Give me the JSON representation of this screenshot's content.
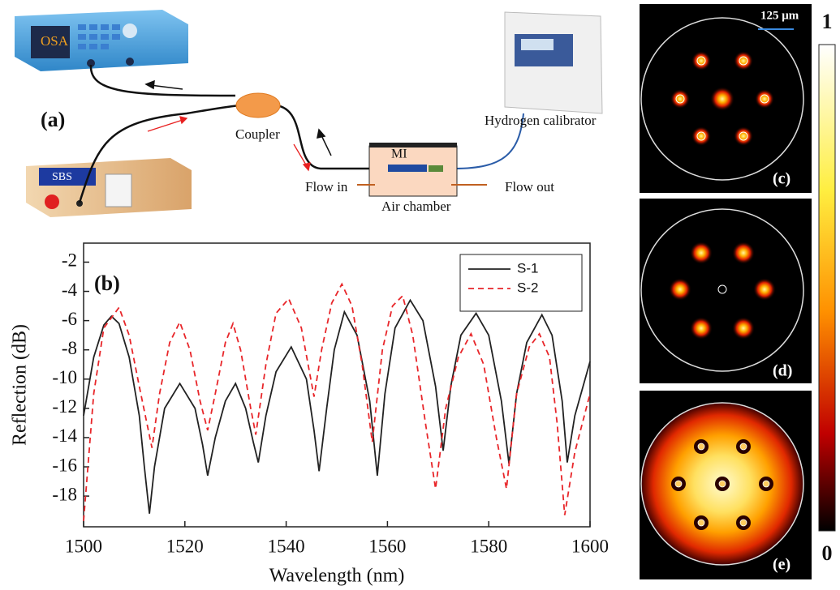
{
  "diagram": {
    "panel_label": "(a)",
    "osa": "OSA",
    "sbs": "SBS",
    "coupler": "Coupler",
    "calibrator": "Hydrogen calibrator",
    "mi": "MI",
    "flow_in": "Flow in",
    "flow_out": "Flow out",
    "chamber": "Air chamber"
  },
  "chart_data": {
    "type": "line",
    "panel_label": "(b)",
    "x_label": "Wavelength (nm)",
    "y_label": "Reflection (dB)",
    "xlim": [
      1500,
      1600
    ],
    "xticks": [
      1500,
      1520,
      1540,
      1560,
      1580,
      1600
    ],
    "ylim": [
      -20.1,
      -0.7
    ],
    "yticks": [
      -18,
      -16,
      -14,
      -12,
      -10,
      -8,
      -6,
      -4,
      -2
    ],
    "legend": "upper right",
    "series": [
      {
        "name": "S-1",
        "color": "#222222",
        "line_style": "solid",
        "x": [
          1500,
          1502,
          1504,
          1505.5,
          1507,
          1509,
          1511,
          1512,
          1513,
          1514,
          1516,
          1519,
          1522,
          1523.5,
          1524.5,
          1526,
          1528,
          1530,
          1532,
          1533.5,
          1534.5,
          1536,
          1538,
          1541,
          1544,
          1545.5,
          1546.5,
          1548,
          1549.5,
          1551.5,
          1554,
          1556.5,
          1558,
          1559.5,
          1561.5,
          1564.5,
          1567,
          1569.5,
          1571,
          1572.5,
          1574.5,
          1577.5,
          1580,
          1582.5,
          1584,
          1585.5,
          1587.5,
          1590.5,
          1592.5,
          1594.5,
          1595.5,
          1597,
          1600
        ],
        "values": [
          -12.5,
          -8.5,
          -6.3,
          -5.7,
          -6.2,
          -8.5,
          -12.5,
          -16,
          -19.2,
          -16,
          -12,
          -10.3,
          -12,
          -14.5,
          -16.6,
          -14,
          -11.5,
          -10.3,
          -12,
          -14.3,
          -15.7,
          -12.5,
          -9.5,
          -7.8,
          -10,
          -13.5,
          -16.3,
          -12,
          -8,
          -5.4,
          -7,
          -11.5,
          -16.6,
          -11,
          -6.5,
          -4.6,
          -6,
          -10.5,
          -14.9,
          -10.5,
          -7,
          -5.5,
          -7,
          -11.5,
          -15.8,
          -11,
          -7.5,
          -5.6,
          -7,
          -11.5,
          -15.7,
          -12.5,
          -8.8
        ]
      },
      {
        "name": "S-2",
        "color": "#e8262a",
        "line_style": "dashed",
        "x": [
          1500,
          1502,
          1504,
          1507,
          1509,
          1511,
          1513.5,
          1515,
          1517,
          1519,
          1521,
          1523,
          1524.5,
          1526,
          1528,
          1529.5,
          1531,
          1533,
          1534,
          1536,
          1538,
          1540.5,
          1543,
          1545.5,
          1547,
          1549,
          1551,
          1553,
          1555,
          1557,
          1559,
          1561,
          1563,
          1565,
          1567.5,
          1569.5,
          1571.5,
          1574,
          1576.5,
          1579,
          1581.5,
          1583.5,
          1585.5,
          1588,
          1590,
          1592,
          1593.5,
          1595,
          1597,
          1600
        ],
        "values": [
          -19.7,
          -11,
          -6.5,
          -5.1,
          -7,
          -10.5,
          -14.7,
          -11,
          -7.5,
          -6.1,
          -8,
          -11.5,
          -13.5,
          -11,
          -7.5,
          -6.2,
          -8,
          -12,
          -13.8,
          -9,
          -5.5,
          -4.5,
          -6.5,
          -11.2,
          -8,
          -4.8,
          -3.5,
          -5,
          -9,
          -14.3,
          -8,
          -5,
          -4.3,
          -7,
          -13,
          -17.5,
          -12,
          -8.5,
          -6.9,
          -9,
          -14,
          -17.5,
          -11,
          -7.8,
          -6.9,
          -8.5,
          -13,
          -19.3,
          -15,
          -11
        ]
      }
    ]
  },
  "mode_panels": [
    {
      "label": "(c)"
    },
    {
      "label": "(d)"
    },
    {
      "label": "(e)"
    }
  ],
  "scale_bar": "125 μm",
  "colorbar": {
    "ticks": [
      0,
      1
    ]
  }
}
